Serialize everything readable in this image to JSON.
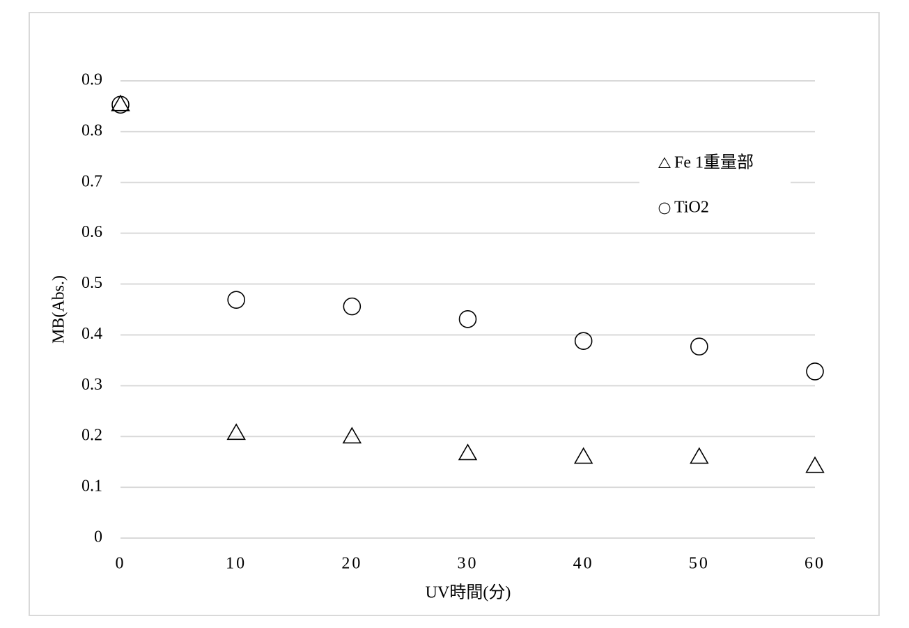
{
  "chart_data": {
    "type": "scatter",
    "x_label": "UV時間(分)",
    "y_label": "MB(Abs.)",
    "x": [
      0,
      10,
      20,
      30,
      40,
      50,
      60
    ],
    "series": [
      {
        "name": "Fe 1重量部",
        "marker": "triangle",
        "color": "#000000",
        "values": [
          0.853,
          0.206,
          0.199,
          0.166,
          0.159,
          0.159,
          0.141
        ]
      },
      {
        "name": "TiO2",
        "marker": "circle",
        "color": "#000000",
        "values": [
          0.853,
          0.469,
          0.456,
          0.431,
          0.388,
          0.377,
          0.328
        ]
      }
    ],
    "xlim": [
      0,
      60
    ],
    "xticks": [
      0,
      10,
      20,
      30,
      40,
      50,
      60
    ],
    "ylim": [
      0,
      0.9
    ],
    "yticks": [
      0,
      0.1,
      0.2,
      0.3,
      0.4,
      0.5,
      0.6,
      0.7,
      0.8,
      0.9
    ],
    "grid": true,
    "legend": "upper right"
  }
}
